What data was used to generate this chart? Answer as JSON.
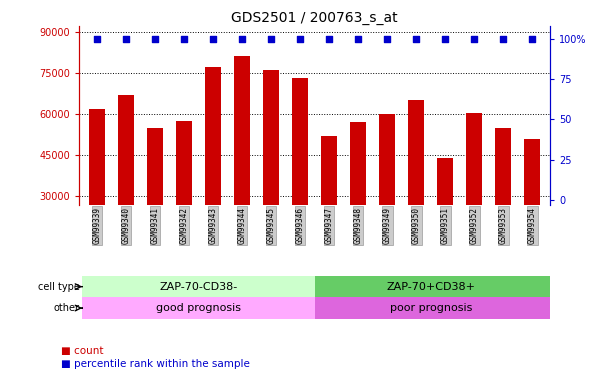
{
  "title": "GDS2501 / 200763_s_at",
  "categories": [
    "GSM99339",
    "GSM99340",
    "GSM99341",
    "GSM99342",
    "GSM99343",
    "GSM99344",
    "GSM99345",
    "GSM99346",
    "GSM99347",
    "GSM99348",
    "GSM99349",
    "GSM99350",
    "GSM99351",
    "GSM99352",
    "GSM99353",
    "GSM99354"
  ],
  "bar_values": [
    62000,
    67000,
    55000,
    57500,
    77000,
    81000,
    76000,
    73000,
    52000,
    57000,
    60000,
    65000,
    44000,
    60500,
    55000,
    51000
  ],
  "percentile_values": [
    100,
    100,
    100,
    100,
    100,
    100,
    100,
    100,
    100,
    100,
    100,
    100,
    100,
    100,
    100,
    100
  ],
  "bar_color": "#cc0000",
  "percentile_color": "#0000cc",
  "ylim_left": [
    27000,
    92000
  ],
  "ylim_right": [
    -3,
    108
  ],
  "yticks_left": [
    30000,
    45000,
    60000,
    75000,
    90000
  ],
  "yticks_right": [
    0,
    25,
    50,
    75,
    100
  ],
  "cell_type_labels": [
    "ZAP-70-CD38-",
    "ZAP-70+CD38+"
  ],
  "cell_type_colors": [
    "#ccffcc",
    "#66cc66"
  ],
  "other_labels": [
    "good prognosis",
    "poor prognosis"
  ],
  "other_colors": [
    "#ffaaff",
    "#dd66dd"
  ],
  "group_split": 8,
  "legend_items": [
    "count",
    "percentile rank within the sample"
  ],
  "left_axis_color": "#cc0000",
  "right_axis_color": "#0000cc",
  "figsize": [
    6.11,
    3.75
  ],
  "dpi": 100
}
